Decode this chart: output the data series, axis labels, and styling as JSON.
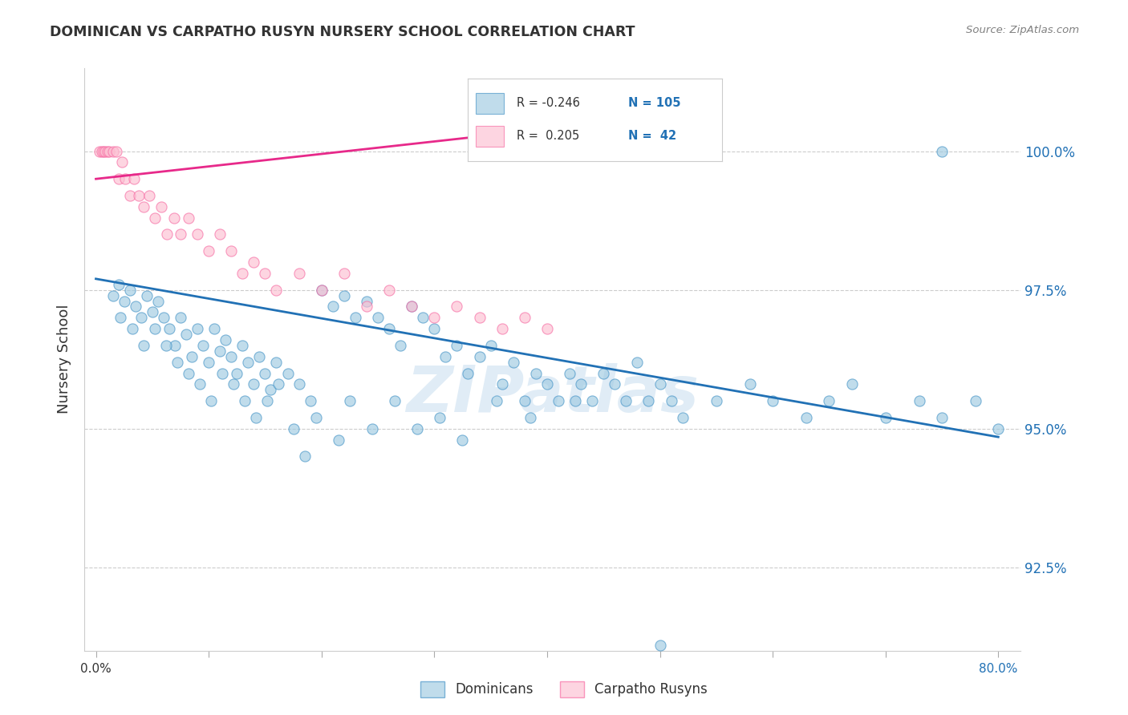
{
  "title": "DOMINICAN VS CARPATHO RUSYN NURSERY SCHOOL CORRELATION CHART",
  "source": "Source: ZipAtlas.com",
  "ylabel": "Nursery School",
  "yticks": [
    92.5,
    95.0,
    97.5,
    100.0
  ],
  "ytick_labels": [
    "92.5%",
    "95.0%",
    "97.5%",
    "100.0%"
  ],
  "xlim": [
    -1.0,
    82.0
  ],
  "ylim": [
    91.0,
    101.5
  ],
  "blue_color": "#9ecae1",
  "pink_color": "#fcbfd2",
  "blue_edge_color": "#4292c6",
  "pink_edge_color": "#f768a1",
  "blue_line_color": "#2171b5",
  "pink_line_color": "#e7298a",
  "tick_color": "#2171b5",
  "grid_color": "#cccccc",
  "title_color": "#333333",
  "blue_dots_x": [
    1.5,
    2.0,
    2.5,
    3.0,
    3.5,
    4.0,
    4.5,
    5.0,
    5.5,
    6.0,
    6.5,
    7.0,
    7.5,
    8.0,
    8.5,
    9.0,
    9.5,
    10.0,
    10.5,
    11.0,
    11.5,
    12.0,
    12.5,
    13.0,
    13.5,
    14.0,
    14.5,
    15.0,
    15.5,
    16.0,
    17.0,
    18.0,
    19.0,
    20.0,
    21.0,
    22.0,
    23.0,
    24.0,
    25.0,
    26.0,
    27.0,
    28.0,
    29.0,
    30.0,
    31.0,
    32.0,
    33.0,
    34.0,
    35.0,
    36.0,
    37.0,
    38.0,
    39.0,
    40.0,
    41.0,
    42.0,
    43.0,
    44.0,
    45.0,
    46.0,
    47.0,
    48.0,
    49.0,
    50.0,
    51.0,
    52.0,
    55.0,
    58.0,
    60.0,
    63.0,
    65.0,
    67.0,
    70.0,
    73.0,
    75.0,
    78.0,
    80.0,
    2.2,
    3.2,
    4.2,
    5.2,
    6.2,
    7.2,
    8.2,
    9.2,
    10.2,
    11.2,
    12.2,
    13.2,
    14.2,
    15.2,
    16.2,
    17.5,
    18.5,
    19.5,
    21.5,
    22.5,
    24.5,
    26.5,
    28.5,
    30.5,
    32.5,
    35.5,
    38.5,
    42.5
  ],
  "blue_dots_y": [
    97.4,
    97.6,
    97.3,
    97.5,
    97.2,
    97.0,
    97.4,
    97.1,
    97.3,
    97.0,
    96.8,
    96.5,
    97.0,
    96.7,
    96.3,
    96.8,
    96.5,
    96.2,
    96.8,
    96.4,
    96.6,
    96.3,
    96.0,
    96.5,
    96.2,
    95.8,
    96.3,
    96.0,
    95.7,
    96.2,
    96.0,
    95.8,
    95.5,
    97.5,
    97.2,
    97.4,
    97.0,
    97.3,
    97.0,
    96.8,
    96.5,
    97.2,
    97.0,
    96.8,
    96.3,
    96.5,
    96.0,
    96.3,
    96.5,
    95.8,
    96.2,
    95.5,
    96.0,
    95.8,
    95.5,
    96.0,
    95.8,
    95.5,
    96.0,
    95.8,
    95.5,
    96.2,
    95.5,
    95.8,
    95.5,
    95.2,
    95.5,
    95.8,
    95.5,
    95.2,
    95.5,
    95.8,
    95.2,
    95.5,
    95.2,
    95.5,
    95.0,
    97.0,
    96.8,
    96.5,
    96.8,
    96.5,
    96.2,
    96.0,
    95.8,
    95.5,
    96.0,
    95.8,
    95.5,
    95.2,
    95.5,
    95.8,
    95.0,
    94.5,
    95.2,
    94.8,
    95.5,
    95.0,
    95.5,
    95.0,
    95.2,
    94.8,
    95.5,
    95.2,
    95.5
  ],
  "pink_dots_x": [
    0.3,
    0.5,
    0.7,
    0.8,
    1.0,
    1.2,
    1.5,
    1.8,
    2.0,
    2.3,
    2.6,
    3.0,
    3.4,
    3.8,
    4.2,
    4.7,
    5.2,
    5.8,
    6.3,
    6.9,
    7.5,
    8.2,
    9.0,
    10.0,
    11.0,
    12.0,
    13.0,
    14.0,
    15.0,
    16.0,
    18.0,
    20.0,
    22.0,
    24.0,
    26.0,
    28.0,
    30.0,
    32.0,
    34.0,
    36.0,
    38.0,
    40.0
  ],
  "pink_dots_y": [
    100.0,
    100.0,
    100.0,
    100.0,
    100.0,
    100.0,
    100.0,
    100.0,
    99.5,
    99.8,
    99.5,
    99.2,
    99.5,
    99.2,
    99.0,
    99.2,
    98.8,
    99.0,
    98.5,
    98.8,
    98.5,
    98.8,
    98.5,
    98.2,
    98.5,
    98.2,
    97.8,
    98.0,
    97.8,
    97.5,
    97.8,
    97.5,
    97.8,
    97.2,
    97.5,
    97.2,
    97.0,
    97.2,
    97.0,
    96.8,
    97.0,
    96.8
  ],
  "blue_line_x": [
    0.0,
    80.0
  ],
  "blue_line_y": [
    97.7,
    94.85
  ],
  "pink_line_x": [
    0.0,
    40.0
  ],
  "pink_line_y": [
    99.5,
    100.4
  ],
  "outlier_blue_x": 50.0,
  "outlier_blue_y": 91.1,
  "top_blue_x": 75.0,
  "top_blue_y": 100.0,
  "legend_r1": "R = -0.246",
  "legend_n1": "N = 105",
  "legend_r2": "R =  0.205",
  "legend_n2": "N =  42",
  "watermark": "ZIPatlas"
}
